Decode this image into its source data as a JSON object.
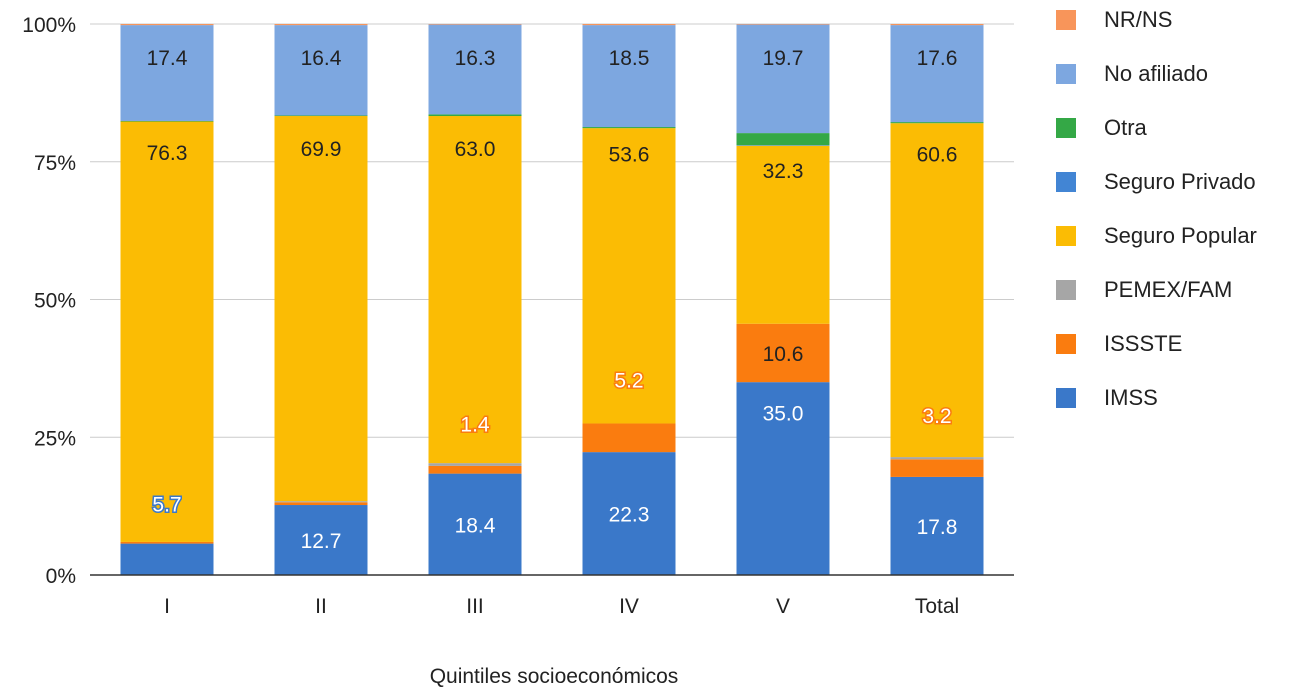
{
  "chart_data": {
    "type": "bar",
    "stacked": true,
    "percent": true,
    "xlabel": "Quintiles socioeconómicos",
    "ylabel": "",
    "categories": [
      "I",
      "II",
      "III",
      "IV",
      "V",
      "Total"
    ],
    "ylim": [
      0,
      100
    ],
    "yticks": [
      "0%",
      "25%",
      "50%",
      "75%",
      "100%"
    ],
    "grid": true,
    "legend_position": "right",
    "series": [
      {
        "name": "IMSS",
        "color": "#3a78c9",
        "values": [
          5.7,
          12.7,
          18.4,
          22.3,
          35.0,
          17.8
        ]
      },
      {
        "name": "ISSSTE",
        "color": "#fa7c0f",
        "values": [
          0.3,
          0.5,
          1.4,
          5.2,
          10.6,
          3.2
        ]
      },
      {
        "name": "PEMEX/FAM",
        "color": "#a6a6a6",
        "values": [
          0.0,
          0.2,
          0.5,
          0.0,
          0.0,
          0.4
        ]
      },
      {
        "name": "Seguro Popular",
        "color": "#fbbc04",
        "values": [
          76.3,
          69.9,
          63.0,
          53.6,
          32.3,
          60.6
        ]
      },
      {
        "name": "Seguro Privado",
        "color": "#4285d4",
        "values": [
          0.0,
          0.0,
          0.0,
          0.0,
          0.1,
          0.0
        ]
      },
      {
        "name": "Otra",
        "color": "#34a846",
        "values": [
          0.1,
          0.1,
          0.3,
          0.2,
          2.2,
          0.2
        ]
      },
      {
        "name": "No afiliado",
        "color": "#7da7e0",
        "values": [
          17.4,
          16.4,
          16.3,
          18.5,
          19.7,
          17.6
        ]
      },
      {
        "name": "NR/NS",
        "color": "#f8955a",
        "values": [
          0.2,
          0.2,
          0.1,
          0.2,
          0.1,
          0.2
        ]
      }
    ],
    "legend_order": [
      "NR/NS",
      "No afiliado",
      "Otra",
      "Seguro Privado",
      "Seguro Popular",
      "PEMEX/FAM",
      "ISSSTE",
      "IMSS"
    ],
    "labels": [
      {
        "series": "IMSS",
        "category": "I",
        "text": "5.7",
        "style": "outlined-blue",
        "ypct": 13.0
      },
      {
        "series": "IMSS",
        "category": "II",
        "text": "12.7",
        "style": "white"
      },
      {
        "series": "IMSS",
        "category": "III",
        "text": "18.4",
        "style": "white"
      },
      {
        "series": "IMSS",
        "category": "IV",
        "text": "22.3",
        "style": "white"
      },
      {
        "series": "IMSS",
        "category": "V",
        "text": "35.0",
        "style": "white",
        "ypct": 29.5
      },
      {
        "series": "IMSS",
        "category": "Total",
        "text": "17.8",
        "style": "white"
      },
      {
        "series": "ISSSTE",
        "category": "III",
        "text": "1.4",
        "style": "outlined-orange",
        "ypct": 27.5
      },
      {
        "series": "ISSSTE",
        "category": "IV",
        "text": "5.2",
        "style": "outlined-orange",
        "ypct": 35.5
      },
      {
        "series": "ISSSTE",
        "category": "V",
        "text": "10.6",
        "style": "dark"
      },
      {
        "series": "ISSSTE",
        "category": "Total",
        "text": "3.2",
        "style": "outlined-orange",
        "ypct": 29.0
      },
      {
        "series": "Seguro Popular",
        "category": "I",
        "text": "76.3",
        "style": "dark",
        "ypct": 76.8
      },
      {
        "series": "Seguro Popular",
        "category": "II",
        "text": "69.9",
        "style": "dark",
        "ypct": 77.5
      },
      {
        "series": "Seguro Popular",
        "category": "III",
        "text": "63.0",
        "style": "dark",
        "ypct": 77.5
      },
      {
        "series": "Seguro Popular",
        "category": "IV",
        "text": "53.6",
        "style": "dark",
        "ypct": 76.5
      },
      {
        "series": "Seguro Popular",
        "category": "V",
        "text": "32.3",
        "style": "dark",
        "ypct": 73.5
      },
      {
        "series": "Seguro Popular",
        "category": "Total",
        "text": "60.6",
        "style": "dark",
        "ypct": 76.5
      },
      {
        "series": "No afiliado",
        "category": "I",
        "text": "17.4",
        "style": "dark",
        "ypct": 94.0
      },
      {
        "series": "No afiliado",
        "category": "II",
        "text": "16.4",
        "style": "dark",
        "ypct": 94.0
      },
      {
        "series": "No afiliado",
        "category": "III",
        "text": "16.3",
        "style": "dark",
        "ypct": 94.0
      },
      {
        "series": "No afiliado",
        "category": "IV",
        "text": "18.5",
        "style": "dark",
        "ypct": 94.0
      },
      {
        "series": "No afiliado",
        "category": "V",
        "text": "19.7",
        "style": "dark",
        "ypct": 94.0
      },
      {
        "series": "No afiliado",
        "category": "Total",
        "text": "17.6",
        "style": "dark",
        "ypct": 94.0
      }
    ]
  }
}
